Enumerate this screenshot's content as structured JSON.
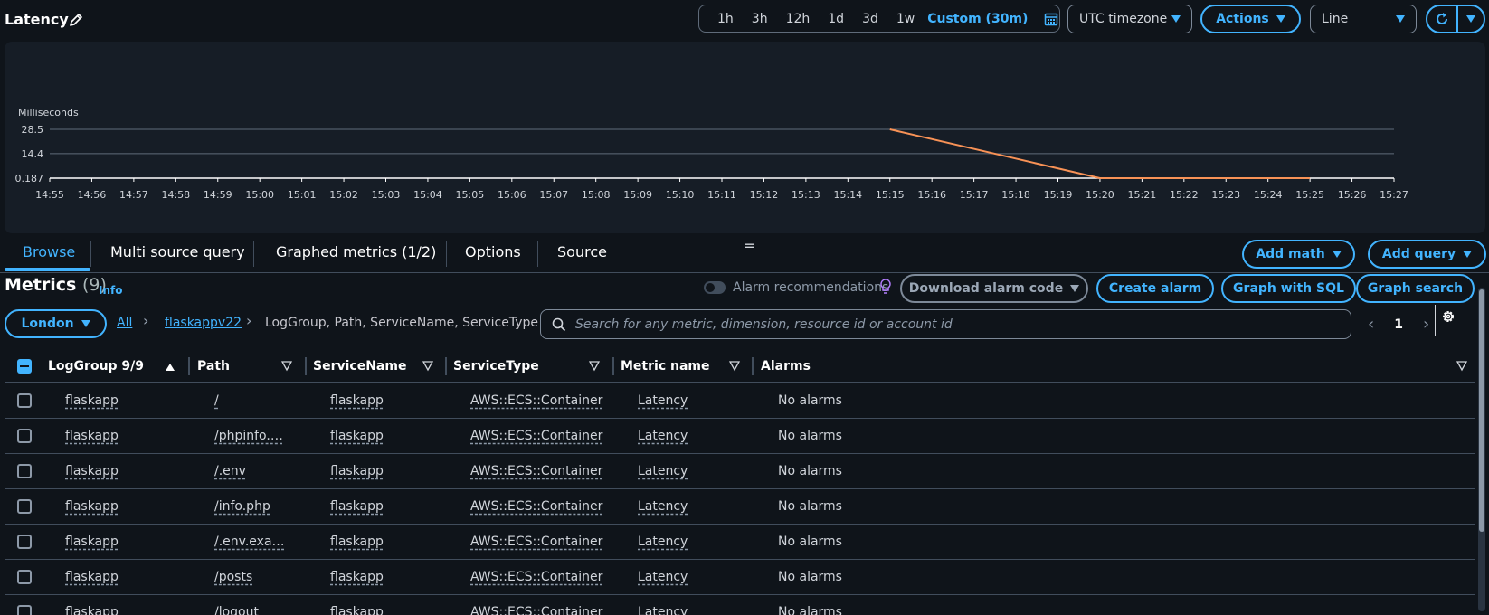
{
  "header": {
    "title": "Latency",
    "time_ranges": [
      "1h",
      "3h",
      "12h",
      "1d",
      "3d",
      "1w"
    ],
    "custom_range": "Custom (30m)",
    "timezone": "UTC timezone",
    "actions": "Actions",
    "chart_type": "Line"
  },
  "chart_data": {
    "type": "line",
    "ylabel": "Milliseconds",
    "ytick_labels": [
      "28.5",
      "14.4",
      "0.187"
    ],
    "ytick_values": [
      28.5,
      14.4,
      0.187
    ],
    "ylim": [
      0.187,
      28.5
    ],
    "x_ticks": [
      "14:55",
      "14:56",
      "14:57",
      "14:58",
      "14:59",
      "15:00",
      "15:01",
      "15:02",
      "15:03",
      "15:04",
      "15:05",
      "15:06",
      "15:07",
      "15:08",
      "15:09",
      "15:10",
      "15:11",
      "15:12",
      "15:13",
      "15:14",
      "15:15",
      "15:16",
      "15:17",
      "15:18",
      "15:19",
      "15:20",
      "15:21",
      "15:22",
      "15:23",
      "15:24",
      "15:25",
      "15:26",
      "15:27"
    ],
    "series": [
      {
        "x": [
          "15:15",
          "15:20",
          "15:25"
        ],
        "values": [
          28.5,
          0.187,
          0.187
        ]
      }
    ],
    "grid": true,
    "colors": {
      "line": "#f89256",
      "grid": "#5f6b7a",
      "text": "#d1d5db"
    }
  },
  "tabs": [
    {
      "label": "Browse"
    },
    {
      "label": "Multi source query"
    },
    {
      "label": "Graphed metrics (1/2)"
    },
    {
      "label": "Options"
    },
    {
      "label": "Source"
    }
  ],
  "tab_actions": {
    "add_math": "Add math",
    "add_query": "Add query"
  },
  "metrics": {
    "title": "Metrics",
    "count": "(9)",
    "info": "Info",
    "alarm_recommendations": "Alarm recommendations",
    "download_alarm_code": "Download alarm code",
    "create_alarm": "Create alarm",
    "graph_with_sql": "Graph with SQL",
    "graph_search": "Graph search"
  },
  "filter": {
    "region": "London",
    "breadcrumb_all": "All",
    "breadcrumb_namespace": "flaskappv22",
    "breadcrumb_current": "LogGroup, Path, ServiceName, ServiceType",
    "search_placeholder": "Search for any metric, dimension, resource id or account id",
    "page": "1"
  },
  "table": {
    "columns": [
      "LogGroup 9/9",
      "Path",
      "ServiceName",
      "ServiceType",
      "Metric name",
      "Alarms"
    ],
    "rows": [
      [
        "flaskapp",
        "/",
        "flaskapp",
        "AWS::ECS::Container",
        "Latency",
        "No alarms"
      ],
      [
        "flaskapp",
        "/phpinfo.…",
        "flaskapp",
        "AWS::ECS::Container",
        "Latency",
        "No alarms"
      ],
      [
        "flaskapp",
        "/.env",
        "flaskapp",
        "AWS::ECS::Container",
        "Latency",
        "No alarms"
      ],
      [
        "flaskapp",
        "/info.php",
        "flaskapp",
        "AWS::ECS::Container",
        "Latency",
        "No alarms"
      ],
      [
        "flaskapp",
        "/.env.exa…",
        "flaskapp",
        "AWS::ECS::Container",
        "Latency",
        "No alarms"
      ],
      [
        "flaskapp",
        "/posts",
        "flaskapp",
        "AWS::ECS::Container",
        "Latency",
        "No alarms"
      ],
      [
        "flaskapp",
        "/logout",
        "flaskapp",
        "AWS::ECS::Container",
        "Latency",
        "No alarms"
      ]
    ]
  },
  "icons": {
    "edit": "pencil-icon",
    "calendar": "calendar-icon",
    "refresh": "refresh-icon",
    "settings": "gear-icon",
    "search": "search-icon",
    "bulb": "lightbulb-icon"
  },
  "colors": {
    "accent": "#42b4ff",
    "background": "#0f141a",
    "panel": "#161d26",
    "series": "#f89256"
  }
}
